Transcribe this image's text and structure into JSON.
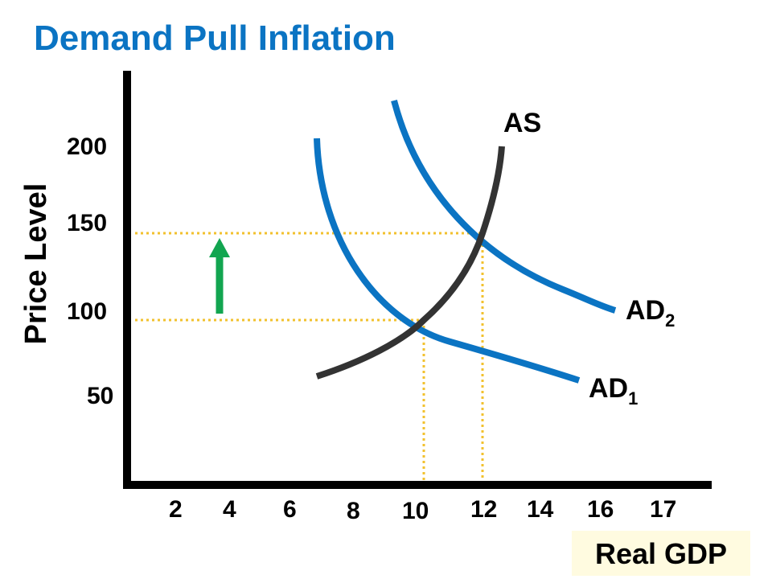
{
  "chart_data": {
    "type": "line",
    "title": "Demand Pull Inflation",
    "xlabel": "Real GDP",
    "ylabel": "Price Level",
    "x_ticks": [
      "2",
      "4",
      "6",
      "8",
      "10",
      "12",
      "14",
      "16",
      "17"
    ],
    "y_ticks": [
      "200",
      "150",
      "100",
      "50"
    ],
    "series": [
      {
        "name": "AS",
        "label_main": "AS",
        "label_sub": ""
      },
      {
        "name": "AD1",
        "label_main": "AD",
        "label_sub": "1"
      },
      {
        "name": "AD2",
        "label_main": "AD",
        "label_sub": "2"
      }
    ],
    "equilibria": [
      {
        "x": 10,
        "y": 100
      },
      {
        "x": 12,
        "y": 150
      }
    ],
    "annotation": "price level rise (green up arrow)",
    "colors": {
      "title": "#0b74c3",
      "ad": "#0b74c3",
      "as": "#333333",
      "guides": "#f2c12e",
      "arrow": "#12a550",
      "xlabel_bg": "#fffbe0"
    }
  }
}
